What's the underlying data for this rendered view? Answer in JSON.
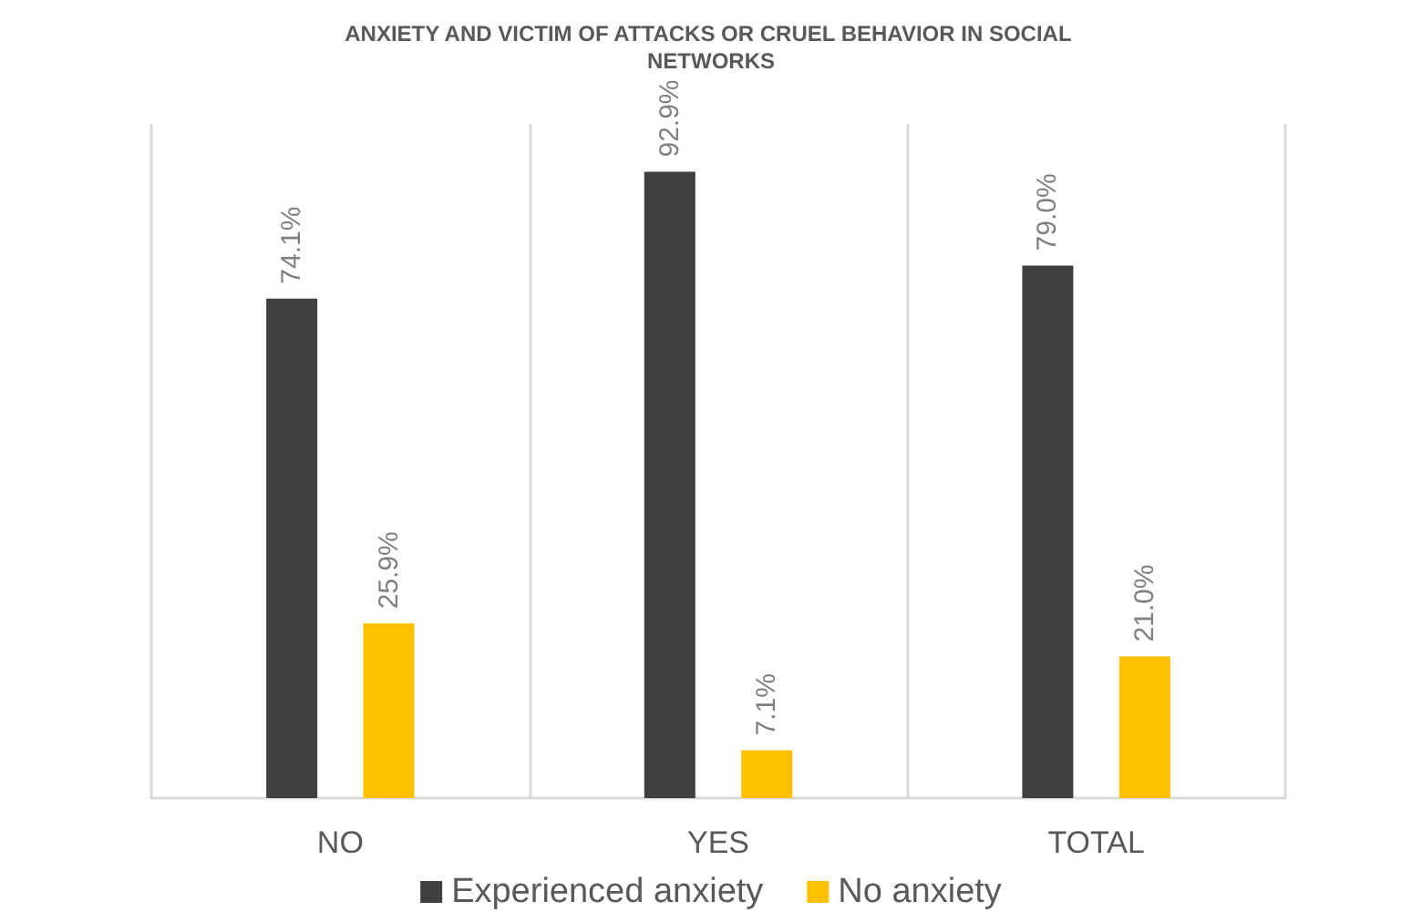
{
  "chart_data": {
    "type": "bar",
    "title": "ANXIETY AND VICTIM OF ATTACKS OR CRUEL BEHAVIOR IN SOCIAL NETWORKS",
    "categories": [
      "NO",
      "YES",
      "TOTAL"
    ],
    "series": [
      {
        "name": "Experienced anxiety",
        "color": "#404040",
        "values": [
          74.1,
          92.9,
          79.0
        ],
        "value_labels": [
          "74.1%",
          "92.9%",
          "79.0%"
        ]
      },
      {
        "name": "No anxiety",
        "color": "#ffc000",
        "values": [
          25.9,
          7.1,
          21.0
        ],
        "value_labels": [
          "25.9%",
          "7.1%",
          "21.0%"
        ]
      }
    ],
    "ylim": [
      0,
      100
    ],
    "tick_labels": "x",
    "grid": "x",
    "legend": "bottom"
  }
}
